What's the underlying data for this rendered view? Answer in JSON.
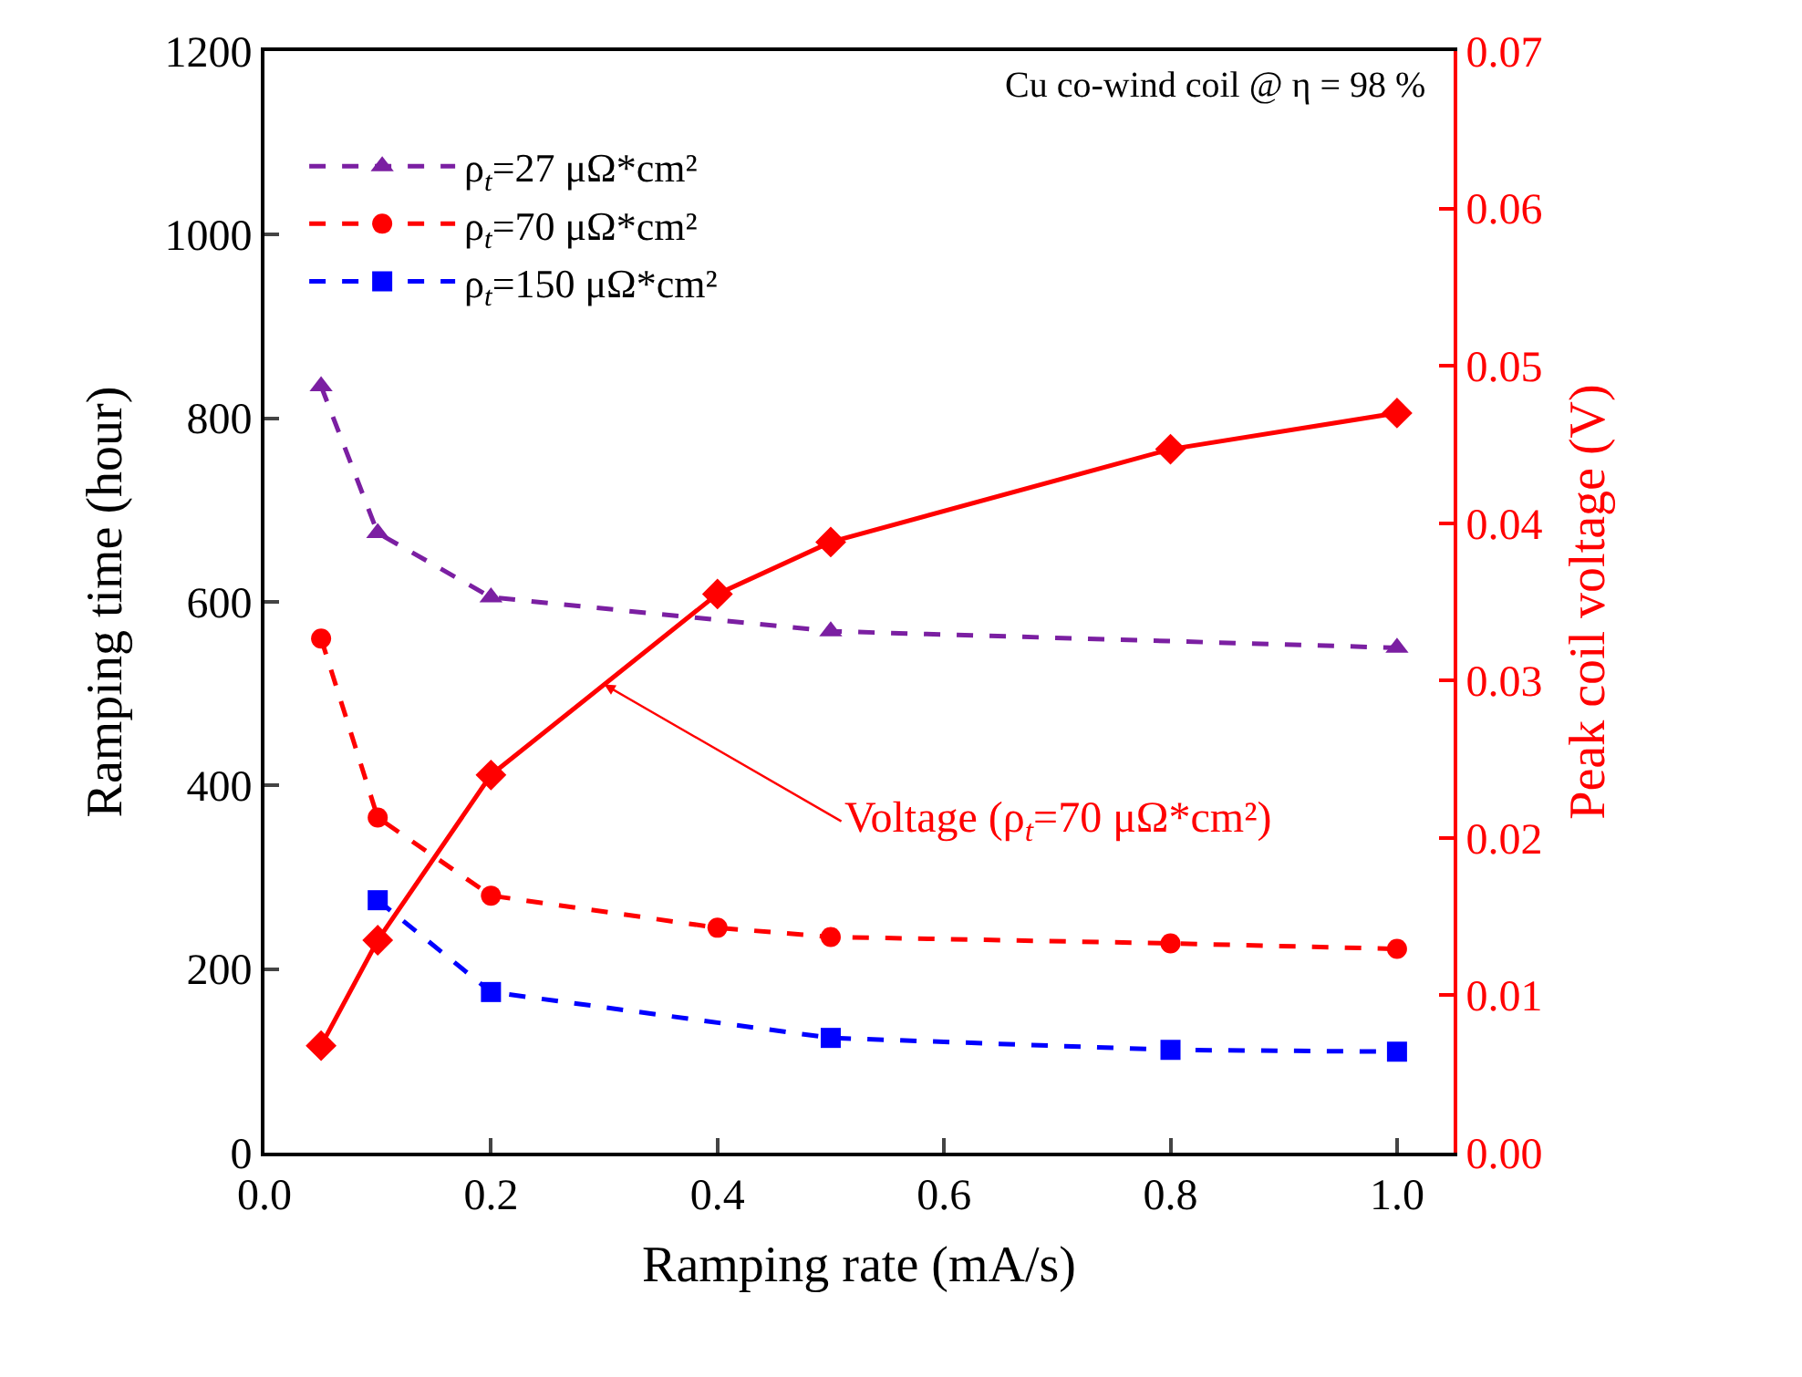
{
  "chart_data": {
    "type": "line",
    "xlabel": "Ramping rate (mA/s)",
    "ylabel": "Ramping time (hour)",
    "y2label": "Peak coil voltage (V)",
    "xlim": [
      0.0,
      1.05
    ],
    "xticks": [
      {
        "value": 0,
        "label": "0.0"
      },
      {
        "value": 0.2,
        "label": "0.2"
      },
      {
        "value": 0.4,
        "label": "0.4"
      },
      {
        "value": 0.6,
        "label": "0.6"
      },
      {
        "value": 0.8,
        "label": "0.8"
      },
      {
        "value": 1.0,
        "label": "1.0"
      }
    ],
    "ylim": [
      0,
      1200
    ],
    "yticks": [
      0,
      200,
      400,
      600,
      800,
      1000,
      1200
    ],
    "y2lim": [
      0,
      0.07
    ],
    "y2ticks": [
      {
        "value": 0,
        "label": "0.00"
      },
      {
        "value": 0.01,
        "label": "0.01"
      },
      {
        "value": 0.02,
        "label": "0.02"
      },
      {
        "value": 0.03,
        "label": "0.03"
      },
      {
        "value": 0.04,
        "label": "0.04"
      },
      {
        "value": 0.05,
        "label": "0.05"
      },
      {
        "value": 0.06,
        "label": "0.06"
      },
      {
        "value": 0.07,
        "label": "0.07"
      }
    ],
    "series": [
      {
        "name": "ρ$_{t}$=27 μΩ*cm²",
        "color": "#7b1fa2",
        "marker": "triangle",
        "line_style": "dashed",
        "x": [
          0.05,
          0.1,
          0.2,
          0.5,
          1.0
        ],
        "values": [
          835,
          675,
          605,
          568,
          550
        ]
      },
      {
        "name": "ρ$_{t}$=70 μΩ*cm²",
        "color": "#ff0000",
        "marker": "circle",
        "line_style": "dashed",
        "x": [
          0.05,
          0.1,
          0.2,
          0.4,
          0.5,
          0.8,
          1.0
        ],
        "values": [
          560,
          365,
          280,
          245,
          235,
          228,
          222
        ]
      },
      {
        "name": "ρ$_{t}$=150 μΩ*cm²",
        "color": "#0000ff",
        "marker": "square",
        "line_style": "dashed",
        "x": [
          0.1,
          0.2,
          0.5,
          0.8,
          1.0
        ],
        "values": [
          275,
          175,
          125,
          112,
          110
        ]
      },
      {
        "color": "#ff0000",
        "marker": "diamond",
        "line_style": "solid",
        "axis": "y2",
        "x": [
          0.05,
          0.1,
          0.2,
          0.4,
          0.5,
          0.8,
          1.0
        ],
        "values": [
          0.0068,
          0.0135,
          0.024,
          0.0355,
          0.0388,
          0.0447,
          0.047
        ]
      }
    ],
    "annotations": [
      "Cu co-wind coil @ η = 98 %",
      {
        "text": "Voltage (ρ$_{t}$=70 μΩ*cm²)",
        "x": 0.3,
        "y": 510
      }
    ],
    "legend": "top left"
  }
}
